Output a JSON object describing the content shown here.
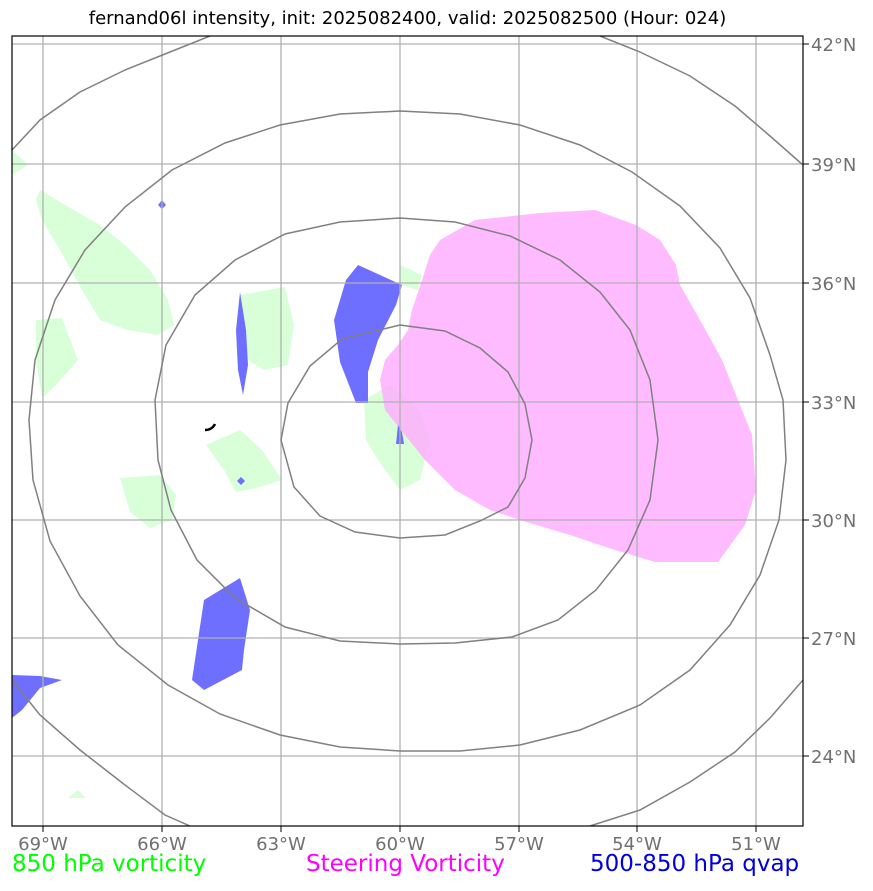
{
  "title": "fernand06l intensity, init: 2025082400, valid: 2025082500 (Hour: 024)",
  "lon_ticks": [
    "69°W",
    "66°W",
    "63°W",
    "60°W",
    "57°W",
    "54°W",
    "51°W"
  ],
  "lat_ticks": [
    "42°N",
    "39°N",
    "36°N",
    "33°N",
    "30°N",
    "27°N",
    "24°N"
  ],
  "legend": [
    {
      "label": "850 hPa vorticity",
      "color": "#00ff00"
    },
    {
      "label": "Steering Vorticity",
      "color": "#ff00ff"
    },
    {
      "label": "500-850 hPa qvap",
      "color": "#0000dd"
    }
  ],
  "colors": {
    "vorticity_850": "#ccffcc",
    "steering_vorticity": "#ffb3ff",
    "qvap": "#6f6fff",
    "grid": "#b0b0b0",
    "range_rings": "#808080"
  },
  "center": {
    "lon": -60,
    "lat": 32
  }
}
